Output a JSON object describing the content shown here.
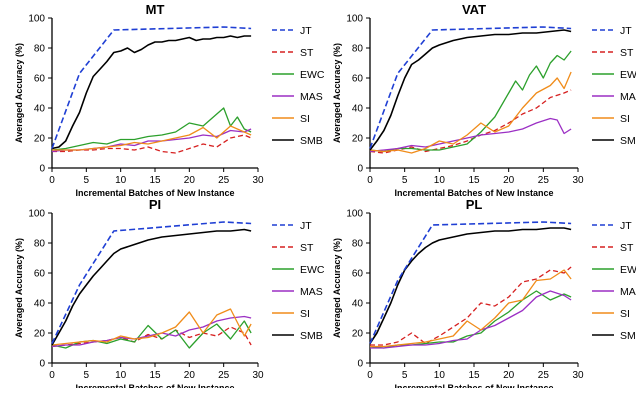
{
  "colors": {
    "JT": "#1f3fd4",
    "ST": "#d62020",
    "EWC": "#2ca02c",
    "MAS": "#9b2fc4",
    "SI": "#f08c1a",
    "SMB": "#000000"
  },
  "chart_data": [
    {
      "type": "line",
      "title": "MT",
      "xlabel": "Incremental Batches of New Instance",
      "ylabel": "Averaged Accuracy (%)",
      "xlim": [
        0,
        30
      ],
      "ylim": [
        0,
        100
      ],
      "xticks": [
        "0",
        "5",
        "10",
        "15",
        "20",
        "25",
        "30"
      ],
      "yticks": [
        "0",
        "20",
        "40",
        "60",
        "80",
        "100"
      ],
      "legend_position": "right",
      "series": [
        {
          "name": "JT",
          "x": [
            0,
            4,
            9,
            25,
            29
          ],
          "y": [
            13,
            63,
            92,
            94,
            93
          ]
        },
        {
          "name": "ST",
          "x": [
            0,
            2,
            4,
            6,
            8,
            10,
            12,
            14,
            16,
            18,
            20,
            22,
            24,
            26,
            28,
            29
          ],
          "y": [
            11,
            11,
            12,
            12,
            13,
            13,
            12,
            14,
            11,
            10,
            13,
            16,
            14,
            20,
            22,
            20
          ]
        },
        {
          "name": "EWC",
          "x": [
            0,
            2,
            4,
            6,
            8,
            10,
            12,
            14,
            16,
            18,
            20,
            22,
            24,
            25,
            26,
            27,
            28,
            29
          ],
          "y": [
            12,
            13,
            15,
            17,
            16,
            19,
            19,
            21,
            22,
            24,
            30,
            28,
            36,
            40,
            28,
            34,
            26,
            24
          ]
        },
        {
          "name": "MAS",
          "x": [
            0,
            2,
            4,
            6,
            8,
            10,
            12,
            14,
            16,
            18,
            20,
            22,
            24,
            26,
            28,
            29
          ],
          "y": [
            11,
            12,
            12,
            13,
            14,
            16,
            15,
            18,
            18,
            19,
            20,
            22,
            21,
            25,
            24,
            26
          ]
        },
        {
          "name": "SI",
          "x": [
            0,
            2,
            4,
            6,
            8,
            10,
            12,
            14,
            16,
            18,
            20,
            22,
            24,
            26,
            28,
            29
          ],
          "y": [
            12,
            12,
            12,
            13,
            14,
            15,
            17,
            16,
            18,
            20,
            22,
            27,
            20,
            28,
            24,
            22
          ]
        },
        {
          "name": "SMB",
          "x": [
            0,
            1,
            2,
            3,
            4,
            5,
            6,
            7,
            8,
            9,
            10,
            11,
            12,
            13,
            14,
            15,
            16,
            17,
            18,
            19,
            20,
            21,
            22,
            23,
            24,
            25,
            26,
            27,
            28,
            29
          ],
          "y": [
            13,
            14,
            18,
            28,
            37,
            50,
            61,
            66,
            71,
            77,
            78,
            80,
            77,
            79,
            82,
            84,
            84,
            85,
            85,
            86,
            87,
            85,
            86,
            86,
            87,
            87,
            88,
            87,
            88,
            88
          ]
        }
      ]
    },
    {
      "type": "line",
      "title": "VAT",
      "xlabel": "Incremental Batches of New Instance",
      "ylabel": "Averaged Accuracy (%)",
      "xlim": [
        0,
        30
      ],
      "ylim": [
        0,
        100
      ],
      "xticks": [
        "0",
        "5",
        "10",
        "15",
        "20",
        "25",
        "30"
      ],
      "yticks": [
        "0",
        "20",
        "40",
        "60",
        "80",
        "100"
      ],
      "legend_position": "right",
      "series": [
        {
          "name": "JT",
          "x": [
            0,
            4,
            9,
            25,
            29
          ],
          "y": [
            13,
            63,
            92,
            94,
            93
          ]
        },
        {
          "name": "ST",
          "x": [
            0,
            2,
            4,
            6,
            8,
            10,
            12,
            14,
            16,
            18,
            20,
            22,
            24,
            26,
            28,
            29
          ],
          "y": [
            11,
            10,
            12,
            14,
            11,
            13,
            15,
            18,
            22,
            25,
            30,
            36,
            40,
            47,
            50,
            52
          ]
        },
        {
          "name": "EWC",
          "x": [
            0,
            2,
            4,
            6,
            8,
            10,
            12,
            14,
            16,
            18,
            20,
            21,
            22,
            23,
            24,
            25,
            26,
            27,
            28,
            29
          ],
          "y": [
            12,
            11,
            13,
            13,
            12,
            12,
            14,
            16,
            24,
            34,
            50,
            58,
            52,
            62,
            68,
            60,
            70,
            75,
            72,
            78
          ]
        },
        {
          "name": "MAS",
          "x": [
            0,
            2,
            4,
            6,
            8,
            10,
            12,
            14,
            16,
            18,
            20,
            22,
            24,
            26,
            27,
            28,
            29
          ],
          "y": [
            11,
            12,
            13,
            15,
            14,
            16,
            18,
            20,
            22,
            23,
            24,
            26,
            30,
            33,
            32,
            23,
            26
          ]
        },
        {
          "name": "SI",
          "x": [
            0,
            2,
            4,
            6,
            8,
            10,
            12,
            14,
            16,
            18,
            20,
            22,
            24,
            26,
            27,
            28,
            29
          ],
          "y": [
            12,
            11,
            12,
            10,
            13,
            18,
            16,
            22,
            30,
            24,
            28,
            40,
            50,
            55,
            60,
            53,
            64
          ]
        },
        {
          "name": "SMB",
          "x": [
            0,
            1,
            2,
            3,
            4,
            5,
            6,
            7,
            8,
            9,
            10,
            12,
            14,
            16,
            18,
            20,
            22,
            24,
            26,
            28,
            29
          ],
          "y": [
            12,
            18,
            25,
            35,
            48,
            60,
            69,
            72,
            76,
            80,
            82,
            85,
            87,
            88,
            89,
            89,
            90,
            90,
            91,
            92,
            91
          ]
        }
      ]
    },
    {
      "type": "line",
      "title": "PI",
      "xlabel": "Incremental Batches of New Instance",
      "ylabel": "Averaged Accuracy (%)",
      "xlim": [
        0,
        30
      ],
      "ylim": [
        0,
        100
      ],
      "xticks": [
        "0",
        "5",
        "10",
        "15",
        "20",
        "25",
        "30"
      ],
      "yticks": [
        "0",
        "20",
        "40",
        "60",
        "80",
        "100"
      ],
      "legend_position": "right",
      "series": [
        {
          "name": "JT",
          "x": [
            0,
            4,
            9,
            25,
            29
          ],
          "y": [
            13,
            52,
            88,
            94,
            93
          ]
        },
        {
          "name": "ST",
          "x": [
            0,
            2,
            4,
            6,
            8,
            10,
            12,
            14,
            16,
            18,
            20,
            22,
            24,
            26,
            28,
            29
          ],
          "y": [
            11,
            12,
            13,
            14,
            15,
            17,
            14,
            19,
            16,
            22,
            17,
            20,
            18,
            24,
            20,
            12
          ]
        },
        {
          "name": "EWC",
          "x": [
            0,
            2,
            4,
            6,
            8,
            10,
            12,
            14,
            16,
            18,
            20,
            22,
            24,
            26,
            28,
            29
          ],
          "y": [
            12,
            10,
            14,
            15,
            13,
            16,
            14,
            25,
            16,
            22,
            10,
            20,
            26,
            16,
            28,
            20
          ]
        },
        {
          "name": "MAS",
          "x": [
            0,
            2,
            4,
            6,
            8,
            10,
            12,
            14,
            16,
            18,
            20,
            22,
            24,
            26,
            28,
            29
          ],
          "y": [
            11,
            12,
            12,
            14,
            15,
            17,
            16,
            18,
            20,
            18,
            22,
            24,
            28,
            30,
            31,
            30
          ]
        },
        {
          "name": "SI",
          "x": [
            0,
            2,
            4,
            6,
            8,
            10,
            12,
            14,
            16,
            18,
            20,
            22,
            24,
            26,
            28,
            29
          ],
          "y": [
            12,
            13,
            14,
            15,
            14,
            18,
            16,
            17,
            20,
            24,
            34,
            20,
            32,
            36,
            18,
            26
          ]
        },
        {
          "name": "SMB",
          "x": [
            0,
            1,
            2,
            3,
            4,
            5,
            6,
            7,
            8,
            9,
            10,
            12,
            14,
            16,
            18,
            20,
            22,
            24,
            26,
            28,
            29
          ],
          "y": [
            12,
            20,
            28,
            38,
            46,
            52,
            58,
            63,
            68,
            73,
            76,
            79,
            82,
            84,
            85,
            86,
            87,
            88,
            88,
            89,
            88
          ]
        }
      ]
    },
    {
      "type": "line",
      "title": "PL",
      "xlabel": "Incremental Batches of New Instance",
      "ylabel": "Averaged Accuracy (%)",
      "xlim": [
        0,
        30
      ],
      "ylim": [
        0,
        100
      ],
      "xticks": [
        "0",
        "5",
        "10",
        "15",
        "20",
        "25",
        "30"
      ],
      "yticks": [
        "0",
        "20",
        "40",
        "60",
        "80",
        "100"
      ],
      "legend_position": "right",
      "series": [
        {
          "name": "JT",
          "x": [
            0,
            4,
            9,
            25,
            29
          ],
          "y": [
            13,
            55,
            92,
            94,
            93
          ]
        },
        {
          "name": "ST",
          "x": [
            0,
            2,
            4,
            6,
            8,
            10,
            12,
            14,
            16,
            18,
            20,
            22,
            24,
            26,
            28,
            29
          ],
          "y": [
            12,
            12,
            14,
            20,
            13,
            18,
            24,
            30,
            40,
            38,
            44,
            54,
            56,
            62,
            60,
            64
          ]
        },
        {
          "name": "EWC",
          "x": [
            0,
            2,
            4,
            6,
            8,
            10,
            12,
            14,
            16,
            18,
            20,
            22,
            24,
            26,
            28,
            29
          ],
          "y": [
            11,
            10,
            12,
            12,
            13,
            14,
            14,
            18,
            20,
            28,
            34,
            42,
            48,
            42,
            46,
            44
          ]
        },
        {
          "name": "MAS",
          "x": [
            0,
            2,
            4,
            6,
            8,
            10,
            12,
            14,
            16,
            18,
            20,
            22,
            24,
            26,
            28,
            29
          ],
          "y": [
            10,
            10,
            11,
            12,
            12,
            13,
            15,
            16,
            22,
            25,
            30,
            35,
            44,
            48,
            45,
            42
          ]
        },
        {
          "name": "SI",
          "x": [
            0,
            2,
            4,
            6,
            8,
            10,
            12,
            14,
            16,
            18,
            20,
            22,
            24,
            26,
            28,
            29
          ],
          "y": [
            11,
            11,
            12,
            13,
            14,
            16,
            18,
            28,
            22,
            30,
            40,
            42,
            55,
            56,
            62,
            56
          ]
        },
        {
          "name": "SMB",
          "x": [
            0,
            1,
            2,
            3,
            4,
            5,
            6,
            7,
            8,
            9,
            10,
            12,
            14,
            16,
            18,
            20,
            22,
            24,
            26,
            28,
            29
          ],
          "y": [
            13,
            20,
            30,
            40,
            52,
            62,
            68,
            73,
            77,
            80,
            82,
            84,
            86,
            87,
            88,
            88,
            89,
            89,
            90,
            90,
            89
          ]
        }
      ]
    }
  ]
}
